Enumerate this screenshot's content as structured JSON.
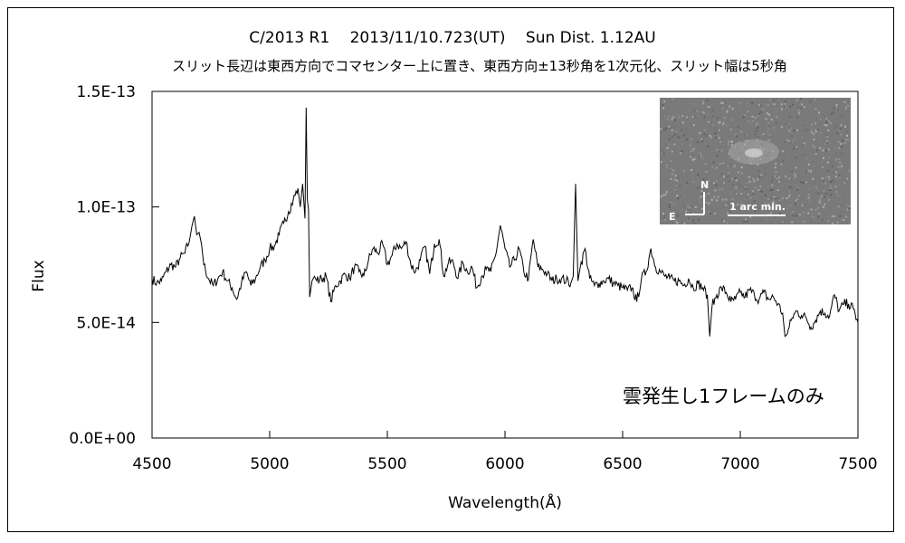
{
  "chart_data": {
    "type": "line",
    "title": "C/2013 R1　 2013/11/10.723(UT)　 Sun Dist. 1.12AU",
    "subtitle": "スリット長辺は東西方向でコマセンター上に置き、東西方向±13秒角を1次元化、スリット幅は5秒角",
    "xlabel": "Wavelength(Å)",
    "ylabel": "Flux",
    "xlim": [
      4500,
      7500
    ],
    "ylim": [
      0,
      1.5e-13
    ],
    "x_ticks": [
      4500,
      5000,
      5500,
      6000,
      6500,
      7000,
      7500
    ],
    "x_tick_labels": [
      "4500",
      "5000",
      "5500",
      "6000",
      "6500",
      "7000",
      "7500"
    ],
    "y_ticks": [
      0,
      5e-14,
      1e-13,
      1.5e-13
    ],
    "y_tick_labels": [
      "0.0E+00",
      "5.0E-14",
      "1.0E-13",
      "1.5E-13"
    ],
    "grid": false,
    "line_color": "#000000",
    "annotation": "雲発生し1フレームのみ",
    "inset": {
      "description_icon": "comet-image",
      "n_label": "N",
      "e_label": "E",
      "scale_label": "1 arc min."
    },
    "series": [
      {
        "x": [
          4500,
          4520,
          4540,
          4560,
          4580,
          4600,
          4620,
          4640,
          4660,
          4670,
          4680,
          4690,
          4700,
          4710,
          4720,
          4740,
          4760,
          4780,
          4800,
          4820,
          4840,
          4860,
          4880,
          4900,
          4920,
          4940,
          4960,
          4980,
          5000,
          5020,
          5040,
          5060,
          5080,
          5100,
          5120,
          5130,
          5140,
          5150,
          5155,
          5160,
          5165,
          5170,
          5180,
          5190,
          5200,
          5220,
          5240,
          5260,
          5280,
          5300,
          5320,
          5340,
          5360,
          5380,
          5400,
          5420,
          5440,
          5460,
          5480,
          5500,
          5520,
          5540,
          5560,
          5580,
          5600,
          5620,
          5640,
          5660,
          5680,
          5700,
          5720,
          5740,
          5760,
          5780,
          5800,
          5820,
          5840,
          5860,
          5880,
          5900,
          5920,
          5940,
          5960,
          5980,
          6000,
          6020,
          6040,
          6060,
          6080,
          6100,
          6120,
          6140,
          6160,
          6180,
          6200,
          6220,
          6240,
          6260,
          6280,
          6290,
          6300,
          6310,
          6320,
          6340,
          6360,
          6380,
          6400,
          6420,
          6440,
          6460,
          6480,
          6500,
          6520,
          6540,
          6560,
          6580,
          6600,
          6620,
          6640,
          6660,
          6680,
          6700,
          6720,
          6740,
          6760,
          6780,
          6800,
          6820,
          6840,
          6860,
          6870,
          6880,
          6900,
          6920,
          6940,
          6960,
          6980,
          7000,
          7020,
          7040,
          7060,
          7080,
          7100,
          7120,
          7140,
          7160,
          7180,
          7190,
          7200,
          7220,
          7240,
          7260,
          7280,
          7300,
          7320,
          7340,
          7360,
          7380,
          7400,
          7420,
          7440,
          7460,
          7480,
          7500
        ],
        "y": [
          6.9e-14,
          6.7e-14,
          6.8e-14,
          7.2e-14,
          7.5e-14,
          7.4e-14,
          7.8e-14,
          8e-14,
          8.6e-14,
          9.2e-14,
          9.6e-14,
          8.8e-14,
          8.9e-14,
          8.4e-14,
          7.5e-14,
          6.9e-14,
          6.6e-14,
          6.9e-14,
          7.2e-14,
          6.8e-14,
          6.5e-14,
          6e-14,
          6.7e-14,
          7.2e-14,
          6.6e-14,
          6.9e-14,
          7.4e-14,
          7.7e-14,
          8.2e-14,
          8.3e-14,
          8.8e-14,
          9.3e-14,
          9.8e-14,
          1.03e-13,
          1.08e-13,
          1e-13,
          1.1e-13,
          9.5e-14,
          1.43e-13,
          1.03e-13,
          9.9e-14,
          6.1e-14,
          6.8e-14,
          7e-14,
          6.8e-14,
          6.9e-14,
          7e-14,
          5.9e-14,
          6.6e-14,
          6.8e-14,
          7.1e-14,
          6.9e-14,
          7.4e-14,
          7.2e-14,
          7e-14,
          7.7e-14,
          8.2e-14,
          8e-14,
          8.4e-14,
          7.5e-14,
          7.9e-14,
          8.4e-14,
          8.2e-14,
          8.5e-14,
          7.5e-14,
          7.2e-14,
          7.7e-14,
          8.3e-14,
          7.1e-14,
          8.4e-14,
          8.6e-14,
          7e-14,
          7.6e-14,
          7.6e-14,
          6.9e-14,
          7.6e-14,
          7.2e-14,
          7.4e-14,
          6.5e-14,
          7e-14,
          7.3e-14,
          7.2e-14,
          7.9e-14,
          9.2e-14,
          8.2e-14,
          7.4e-14,
          7.7e-14,
          8.2e-14,
          7.2e-14,
          6.9e-14,
          8.6e-14,
          7.4e-14,
          7.3e-14,
          7.1e-14,
          6.8e-14,
          6.9e-14,
          6.9e-14,
          6.8e-14,
          6.7e-14,
          7e-14,
          1.1e-13,
          6.8e-14,
          7.4e-14,
          8.2e-14,
          6.9e-14,
          6.6e-14,
          6.7e-14,
          6.8e-14,
          6.9e-14,
          6.7e-14,
          6.6e-14,
          6.5e-14,
          6.4e-14,
          6.5e-14,
          5.9e-14,
          6.9e-14,
          7.2e-14,
          8.2e-14,
          7.4e-14,
          7.2e-14,
          7e-14,
          6.9e-14,
          6.8e-14,
          6.8e-14,
          6.6e-14,
          6.9e-14,
          6.5e-14,
          6.7e-14,
          6.5e-14,
          6.2e-14,
          4.4e-14,
          5.7e-14,
          6.2e-14,
          6.5e-14,
          6.3e-14,
          5.9e-14,
          6e-14,
          6.3e-14,
          6.1e-14,
          6.4e-14,
          6.2e-14,
          6e-14,
          6.3e-14,
          6e-14,
          6.1e-14,
          5.8e-14,
          5.4e-14,
          4.4e-14,
          4.5e-14,
          5.2e-14,
          5.5e-14,
          5.3e-14,
          5.2e-14,
          4.8e-14,
          5.1e-14,
          5.5e-14,
          5.4e-14,
          5.3e-14,
          6.2e-14,
          5.5e-14,
          5.8e-14,
          5.8e-14,
          5.6e-14,
          5e-14
        ]
      }
    ]
  }
}
